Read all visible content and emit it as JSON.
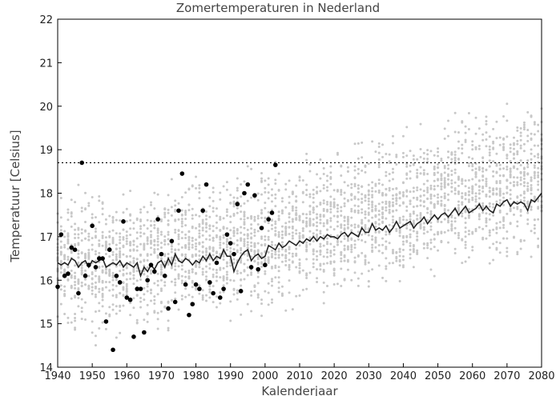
{
  "chart_data": {
    "type": "scatter",
    "title": "Zomertemperaturen in Nederland",
    "xlabel": "Kalenderjaar",
    "ylabel": "Temperatuur [Celsius]",
    "xlim": [
      1940,
      2080
    ],
    "ylim": [
      14,
      22
    ],
    "x_ticks": [
      "1940",
      "1950",
      "1960",
      "1970",
      "1980",
      "1990",
      "2000",
      "2010",
      "2020",
      "2030",
      "2040",
      "2050",
      "2060",
      "2070",
      "2080"
    ],
    "y_ticks": [
      "14",
      "15",
      "16",
      "17",
      "18",
      "19",
      "20",
      "21",
      "22"
    ],
    "reference_line": {
      "y": 18.7,
      "style": "dotted"
    },
    "ensemble_band": {
      "x": [
        1940,
        1960,
        1980,
        2000,
        2020,
        2040,
        2060,
        2080
      ],
      "low": [
        14.8,
        14.8,
        15.0,
        15.3,
        15.6,
        16.0,
        16.3,
        16.6
      ],
      "high": [
        18.0,
        18.0,
        18.3,
        18.6,
        19.0,
        19.4,
        19.8,
        20.2
      ]
    },
    "series": [
      {
        "style": "line",
        "color": "#222222",
        "x": [
          1940,
          1941,
          1942,
          1943,
          1944,
          1945,
          1946,
          1947,
          1948,
          1949,
          1950,
          1951,
          1952,
          1953,
          1954,
          1955,
          1956,
          1957,
          1958,
          1959,
          1960,
          1961,
          1962,
          1963,
          1964,
          1965,
          1966,
          1967,
          1968,
          1969,
          1970,
          1971,
          1972,
          1973,
          1974,
          1975,
          1976,
          1977,
          1978,
          1979,
          1980,
          1981,
          1982,
          1983,
          1984,
          1985,
          1986,
          1987,
          1988,
          1989,
          1990,
          1991,
          1992,
          1993,
          1994,
          1995,
          1996,
          1997,
          1998,
          1999,
          2000,
          2001,
          2002,
          2003,
          2004,
          2005,
          2006,
          2007,
          2008,
          2009,
          2010,
          2011,
          2012,
          2013,
          2014,
          2015,
          2016,
          2017,
          2018,
          2019,
          2020,
          2021,
          2022,
          2023,
          2024,
          2025,
          2026,
          2027,
          2028,
          2029,
          2030,
          2031,
          2032,
          2033,
          2034,
          2035,
          2036,
          2037,
          2038,
          2039,
          2040,
          2041,
          2042,
          2043,
          2044,
          2045,
          2046,
          2047,
          2048,
          2049,
          2050,
          2051,
          2052,
          2053,
          2054,
          2055,
          2056,
          2057,
          2058,
          2059,
          2060,
          2061,
          2062,
          2063,
          2064,
          2065,
          2066,
          2067,
          2068,
          2069,
          2070,
          2071,
          2072,
          2073,
          2074,
          2075,
          2076,
          2077,
          2078,
          2079,
          2080
        ],
        "values": [
          16.4,
          16.35,
          16.4,
          16.35,
          16.5,
          16.45,
          16.3,
          16.4,
          16.45,
          16.3,
          16.45,
          16.4,
          16.45,
          16.5,
          16.3,
          16.35,
          16.4,
          16.35,
          16.45,
          16.3,
          16.4,
          16.35,
          16.3,
          16.4,
          16.1,
          16.3,
          16.2,
          16.35,
          16.25,
          16.4,
          16.45,
          16.3,
          16.5,
          16.35,
          16.6,
          16.45,
          16.4,
          16.5,
          16.45,
          16.35,
          16.45,
          16.4,
          16.55,
          16.45,
          16.6,
          16.45,
          16.55,
          16.5,
          16.7,
          16.55,
          16.55,
          16.2,
          16.4,
          16.55,
          16.65,
          16.7,
          16.45,
          16.55,
          16.6,
          16.5,
          16.55,
          16.8,
          16.75,
          16.7,
          16.85,
          16.75,
          16.8,
          16.9,
          16.85,
          16.8,
          16.9,
          16.85,
          16.95,
          16.9,
          17.0,
          16.9,
          17.0,
          16.95,
          17.05,
          17.0,
          17.0,
          16.95,
          17.05,
          17.1,
          17.0,
          17.1,
          17.05,
          17.0,
          17.2,
          17.1,
          17.1,
          17.3,
          17.15,
          17.2,
          17.15,
          17.25,
          17.1,
          17.2,
          17.35,
          17.2,
          17.25,
          17.3,
          17.35,
          17.2,
          17.3,
          17.35,
          17.45,
          17.3,
          17.4,
          17.5,
          17.4,
          17.5,
          17.55,
          17.45,
          17.55,
          17.65,
          17.5,
          17.6,
          17.7,
          17.55,
          17.6,
          17.65,
          17.75,
          17.6,
          17.7,
          17.6,
          17.55,
          17.75,
          17.7,
          17.8,
          17.85,
          17.7,
          17.8,
          17.75,
          17.8,
          17.75,
          17.6,
          17.85,
          17.8,
          17.9,
          18.0
        ]
      },
      {
        "style": "markers",
        "color": "#000000",
        "x": [
          1940,
          1941,
          1942,
          1943,
          1944,
          1945,
          1946,
          1947,
          1948,
          1949,
          1950,
          1951,
          1952,
          1953,
          1954,
          1955,
          1956,
          1957,
          1958,
          1959,
          1960,
          1961,
          1962,
          1963,
          1964,
          1965,
          1966,
          1967,
          1968,
          1969,
          1970,
          1971,
          1972,
          1973,
          1974,
          1975,
          1976,
          1977,
          1978,
          1979,
          1980,
          1981,
          1982,
          1983,
          1984,
          1985,
          1986,
          1987,
          1988,
          1989,
          1990,
          1991,
          1992,
          1993,
          1994,
          1995,
          1996,
          1997,
          1998,
          1999,
          2000,
          2001,
          2002,
          2003
        ],
        "values": [
          15.85,
          17.05,
          16.1,
          16.15,
          16.75,
          16.7,
          15.7,
          18.7,
          16.1,
          16.35,
          17.25,
          16.3,
          16.5,
          16.5,
          15.05,
          16.7,
          14.4,
          16.1,
          15.95,
          17.35,
          15.6,
          15.55,
          14.7,
          15.8,
          15.8,
          14.8,
          16.0,
          16.35,
          16.2,
          17.4,
          16.6,
          16.1,
          15.35,
          16.9,
          15.5,
          17.6,
          18.45,
          15.9,
          15.2,
          15.45,
          15.9,
          15.8,
          17.6,
          18.2,
          15.95,
          15.7,
          16.4,
          15.6,
          15.8,
          17.05,
          16.85,
          16.6,
          17.75,
          15.75,
          18.0,
          18.2,
          16.3,
          17.95,
          16.25,
          17.2,
          16.35,
          17.4,
          17.55,
          18.65
        ]
      }
    ]
  }
}
